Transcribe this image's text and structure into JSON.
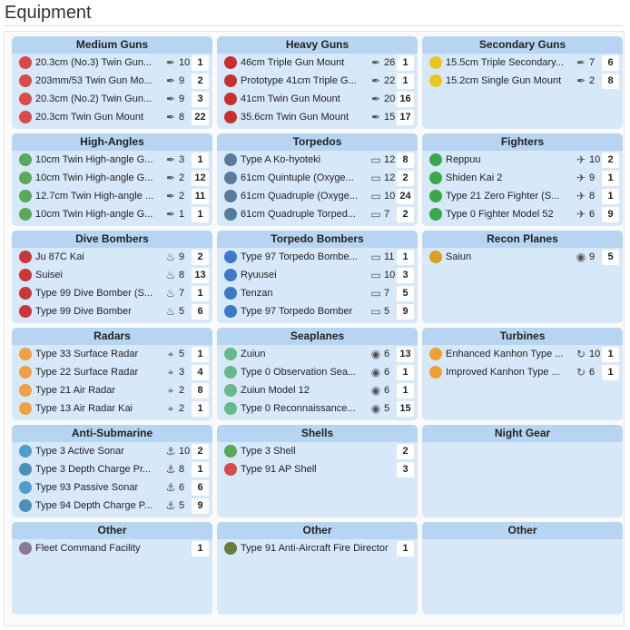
{
  "page": {
    "title": "Equipment"
  },
  "columns": [
    [
      {
        "title": "Medium Guns",
        "stat_icon": "firepower-icon",
        "rows": [
          {
            "name": "20.3cm (No.3) Twin Gun...",
            "stat": "10",
            "count": "1",
            "icon": "red-gun-icon",
            "color": "#d94a4a"
          },
          {
            "name": "203mm/53 Twin Gun Mo...",
            "stat": "9",
            "count": "2",
            "icon": "red-gun-icon",
            "color": "#d94a4a"
          },
          {
            "name": "20.3cm (No.2) Twin Gun...",
            "stat": "9",
            "count": "3",
            "icon": "red-gun-icon",
            "color": "#d94a4a"
          },
          {
            "name": "20.3cm Twin Gun Mount",
            "stat": "8",
            "count": "22",
            "icon": "red-gun-icon",
            "color": "#d94a4a"
          }
        ]
      },
      {
        "title": "High-Angles",
        "stat_icon": "firepower-icon",
        "rows": [
          {
            "name": "10cm Twin High-angle G...",
            "stat": "3",
            "count": "1",
            "icon": "green-gun-icon",
            "color": "#5aa85a"
          },
          {
            "name": "10cm Twin High-angle G...",
            "stat": "2",
            "count": "12",
            "icon": "green-gun-icon",
            "color": "#5aa85a"
          },
          {
            "name": "12.7cm Twin High-angle ...",
            "stat": "2",
            "count": "11",
            "icon": "green-gun-icon",
            "color": "#5aa85a"
          },
          {
            "name": "10cm Twin High-angle G...",
            "stat": "1",
            "count": "1",
            "icon": "green-gun-icon",
            "color": "#5aa85a"
          }
        ]
      },
      {
        "title": "Dive Bombers",
        "stat_icon": "dive-bomb-icon",
        "rows": [
          {
            "name": "Ju 87C Kai",
            "stat": "9",
            "count": "2",
            "icon": "red-plane-icon",
            "color": "#c9373a"
          },
          {
            "name": "Suisei",
            "stat": "8",
            "count": "13",
            "icon": "red-plane-icon",
            "color": "#c9373a"
          },
          {
            "name": "Type 99 Dive Bomber (S...",
            "stat": "7",
            "count": "1",
            "icon": "red-plane-icon",
            "color": "#c9373a"
          },
          {
            "name": "Type 99 Dive Bomber",
            "stat": "5",
            "count": "6",
            "icon": "red-plane-icon",
            "color": "#c9373a"
          }
        ]
      },
      {
        "title": "Radars",
        "stat_icon": "accuracy-icon",
        "rows": [
          {
            "name": "Type 33 Surface Radar",
            "stat": "5",
            "count": "1",
            "icon": "radar-icon",
            "color": "#f0a040"
          },
          {
            "name": "Type 22 Surface Radar",
            "stat": "3",
            "count": "4",
            "icon": "radar-icon",
            "color": "#f0a040"
          },
          {
            "name": "Type 21 Air Radar",
            "stat": "2",
            "count": "8",
            "icon": "radar-icon",
            "color": "#f0a040"
          },
          {
            "name": "Type 13 Air Radar Kai",
            "stat": "2",
            "count": "1",
            "icon": "radar-icon",
            "color": "#f0a040"
          }
        ]
      },
      {
        "title": "Anti-Submarine",
        "stat_icon": "asw-icon",
        "rows": [
          {
            "name": "Type 3 Active Sonar",
            "stat": "10",
            "count": "2",
            "icon": "sonar-icon",
            "color": "#4aa0c8"
          },
          {
            "name": "Type 3 Depth Charge Pr...",
            "stat": "8",
            "count": "1",
            "icon": "depth-charge-icon",
            "color": "#4a90b8"
          },
          {
            "name": "Type 93 Passive Sonar",
            "stat": "6",
            "count": "6",
            "icon": "sonar-icon",
            "color": "#4aa0c8"
          },
          {
            "name": "Type 94 Depth Charge P...",
            "stat": "5",
            "count": "9",
            "icon": "depth-charge-icon",
            "color": "#4a90b8"
          }
        ]
      },
      {
        "title": "Other",
        "stat_icon": "",
        "rows": [
          {
            "name": "Fleet Command Facility",
            "stat": "",
            "count": "1",
            "icon": "command-facility-icon",
            "color": "#8a7a9a"
          }
        ]
      }
    ],
    [
      {
        "title": "Heavy Guns",
        "stat_icon": "firepower-icon",
        "rows": [
          {
            "name": "46cm Triple Gun Mount",
            "stat": "26",
            "count": "1",
            "icon": "red-gun-icon",
            "color": "#c92f2f"
          },
          {
            "name": "Prototype 41cm Triple G...",
            "stat": "22",
            "count": "1",
            "icon": "red-gun-icon",
            "color": "#c92f2f"
          },
          {
            "name": "41cm Twin Gun Mount",
            "stat": "20",
            "count": "16",
            "icon": "red-gun-icon",
            "color": "#c92f2f"
          },
          {
            "name": "35.6cm Twin Gun Mount",
            "stat": "15",
            "count": "17",
            "icon": "red-gun-icon",
            "color": "#c92f2f"
          }
        ]
      },
      {
        "title": "Torpedos",
        "stat_icon": "torpedo-icon",
        "rows": [
          {
            "name": "Type A Ko-hyoteki",
            "stat": "12",
            "count": "8",
            "icon": "torpedo-tube-icon",
            "color": "#5a7a9a"
          },
          {
            "name": "61cm Quintuple (Oxyge...",
            "stat": "12",
            "count": "2",
            "icon": "torpedo-tube-icon",
            "color": "#5a7a9a"
          },
          {
            "name": "61cm Quadruple (Oxyge...",
            "stat": "10",
            "count": "24",
            "icon": "torpedo-tube-icon",
            "color": "#5a7a9a"
          },
          {
            "name": "61cm Quadruple Torped...",
            "stat": "7",
            "count": "2",
            "icon": "torpedo-tube-icon",
            "color": "#5a7a9a"
          }
        ]
      },
      {
        "title": "Torpedo Bombers",
        "stat_icon": "torpedo-icon",
        "rows": [
          {
            "name": "Type 97 Torpedo Bombe...",
            "stat": "11",
            "count": "1",
            "icon": "blue-plane-icon",
            "color": "#3a7ac8"
          },
          {
            "name": "Ryuusei",
            "stat": "10",
            "count": "3",
            "icon": "blue-plane-icon",
            "color": "#3a7ac8"
          },
          {
            "name": "Tenzan",
            "stat": "7",
            "count": "5",
            "icon": "blue-plane-icon",
            "color": "#3a7ac8"
          },
          {
            "name": "Type 97 Torpedo Bomber",
            "stat": "5",
            "count": "9",
            "icon": "blue-plane-icon",
            "color": "#3a7ac8"
          }
        ]
      },
      {
        "title": "Seaplanes",
        "stat_icon": "los-icon",
        "rows": [
          {
            "name": "Zuiun",
            "stat": "6",
            "count": "13",
            "icon": "seaplane-icon",
            "color": "#6ab88a"
          },
          {
            "name": "Type 0 Observation Sea...",
            "stat": "6",
            "count": "1",
            "icon": "seaplane-icon",
            "color": "#6ab88a"
          },
          {
            "name": "Zuiun Model 12",
            "stat": "6",
            "count": "1",
            "icon": "seaplane-icon",
            "color": "#6ab88a"
          },
          {
            "name": "Type 0 Reconnaissance...",
            "stat": "5",
            "count": "15",
            "icon": "seaplane-icon",
            "color": "#6ab88a"
          }
        ]
      },
      {
        "title": "Shells",
        "stat_icon": "",
        "rows": [
          {
            "name": "Type 3 Shell",
            "stat": "",
            "count": "2",
            "icon": "green-shell-icon",
            "color": "#5aa85a"
          },
          {
            "name": "Type 91 AP Shell",
            "stat": "",
            "count": "3",
            "icon": "red-shell-icon",
            "color": "#d94a4a"
          }
        ]
      },
      {
        "title": "Other",
        "stat_icon": "",
        "rows": [
          {
            "name": "Type 91 Anti-Aircraft Fire Director",
            "stat": "",
            "count": "1",
            "icon": "fire-director-icon",
            "color": "#6a7a3a"
          }
        ]
      }
    ],
    [
      {
        "title": "Secondary Guns",
        "stat_icon": "firepower-icon",
        "rows": [
          {
            "name": "15.5cm Triple Secondary...",
            "stat": "7",
            "count": "6",
            "icon": "yellow-gun-icon",
            "color": "#e8c820"
          },
          {
            "name": "15.2cm Single Gun Mount",
            "stat": "2",
            "count": "8",
            "icon": "yellow-gun-icon",
            "color": "#e8c820"
          }
        ]
      },
      {
        "title": "Fighters",
        "stat_icon": "anti-air-icon",
        "rows": [
          {
            "name": "Reppuu",
            "stat": "10",
            "count": "2",
            "icon": "green-plane-icon",
            "color": "#3aa84a"
          },
          {
            "name": "Shiden Kai 2",
            "stat": "9",
            "count": "1",
            "icon": "green-plane-icon",
            "color": "#3aa84a"
          },
          {
            "name": "Type 21 Zero Fighter (S...",
            "stat": "8",
            "count": "1",
            "icon": "green-plane-icon",
            "color": "#3aa84a"
          },
          {
            "name": "Type 0 Fighter Model 52",
            "stat": "6",
            "count": "9",
            "icon": "green-plane-icon",
            "color": "#3aa84a"
          }
        ]
      },
      {
        "title": "Recon Planes",
        "stat_icon": "los-icon",
        "rows": [
          {
            "name": "Saiun",
            "stat": "9",
            "count": "5",
            "icon": "recon-plane-icon",
            "color": "#d8a020"
          }
        ]
      },
      {
        "title": "Turbines",
        "stat_icon": "evasion-icon",
        "rows": [
          {
            "name": "Enhanced Kanhon Type ...",
            "stat": "10",
            "count": "1",
            "icon": "turbine-icon",
            "color": "#f0a030"
          },
          {
            "name": "Improved Kanhon Type ...",
            "stat": "6",
            "count": "1",
            "icon": "turbine-icon",
            "color": "#f0a030"
          }
        ]
      },
      {
        "title": "Night Gear",
        "stat_icon": "",
        "rows": []
      },
      {
        "title": "Other",
        "stat_icon": "",
        "rows": []
      }
    ]
  ]
}
